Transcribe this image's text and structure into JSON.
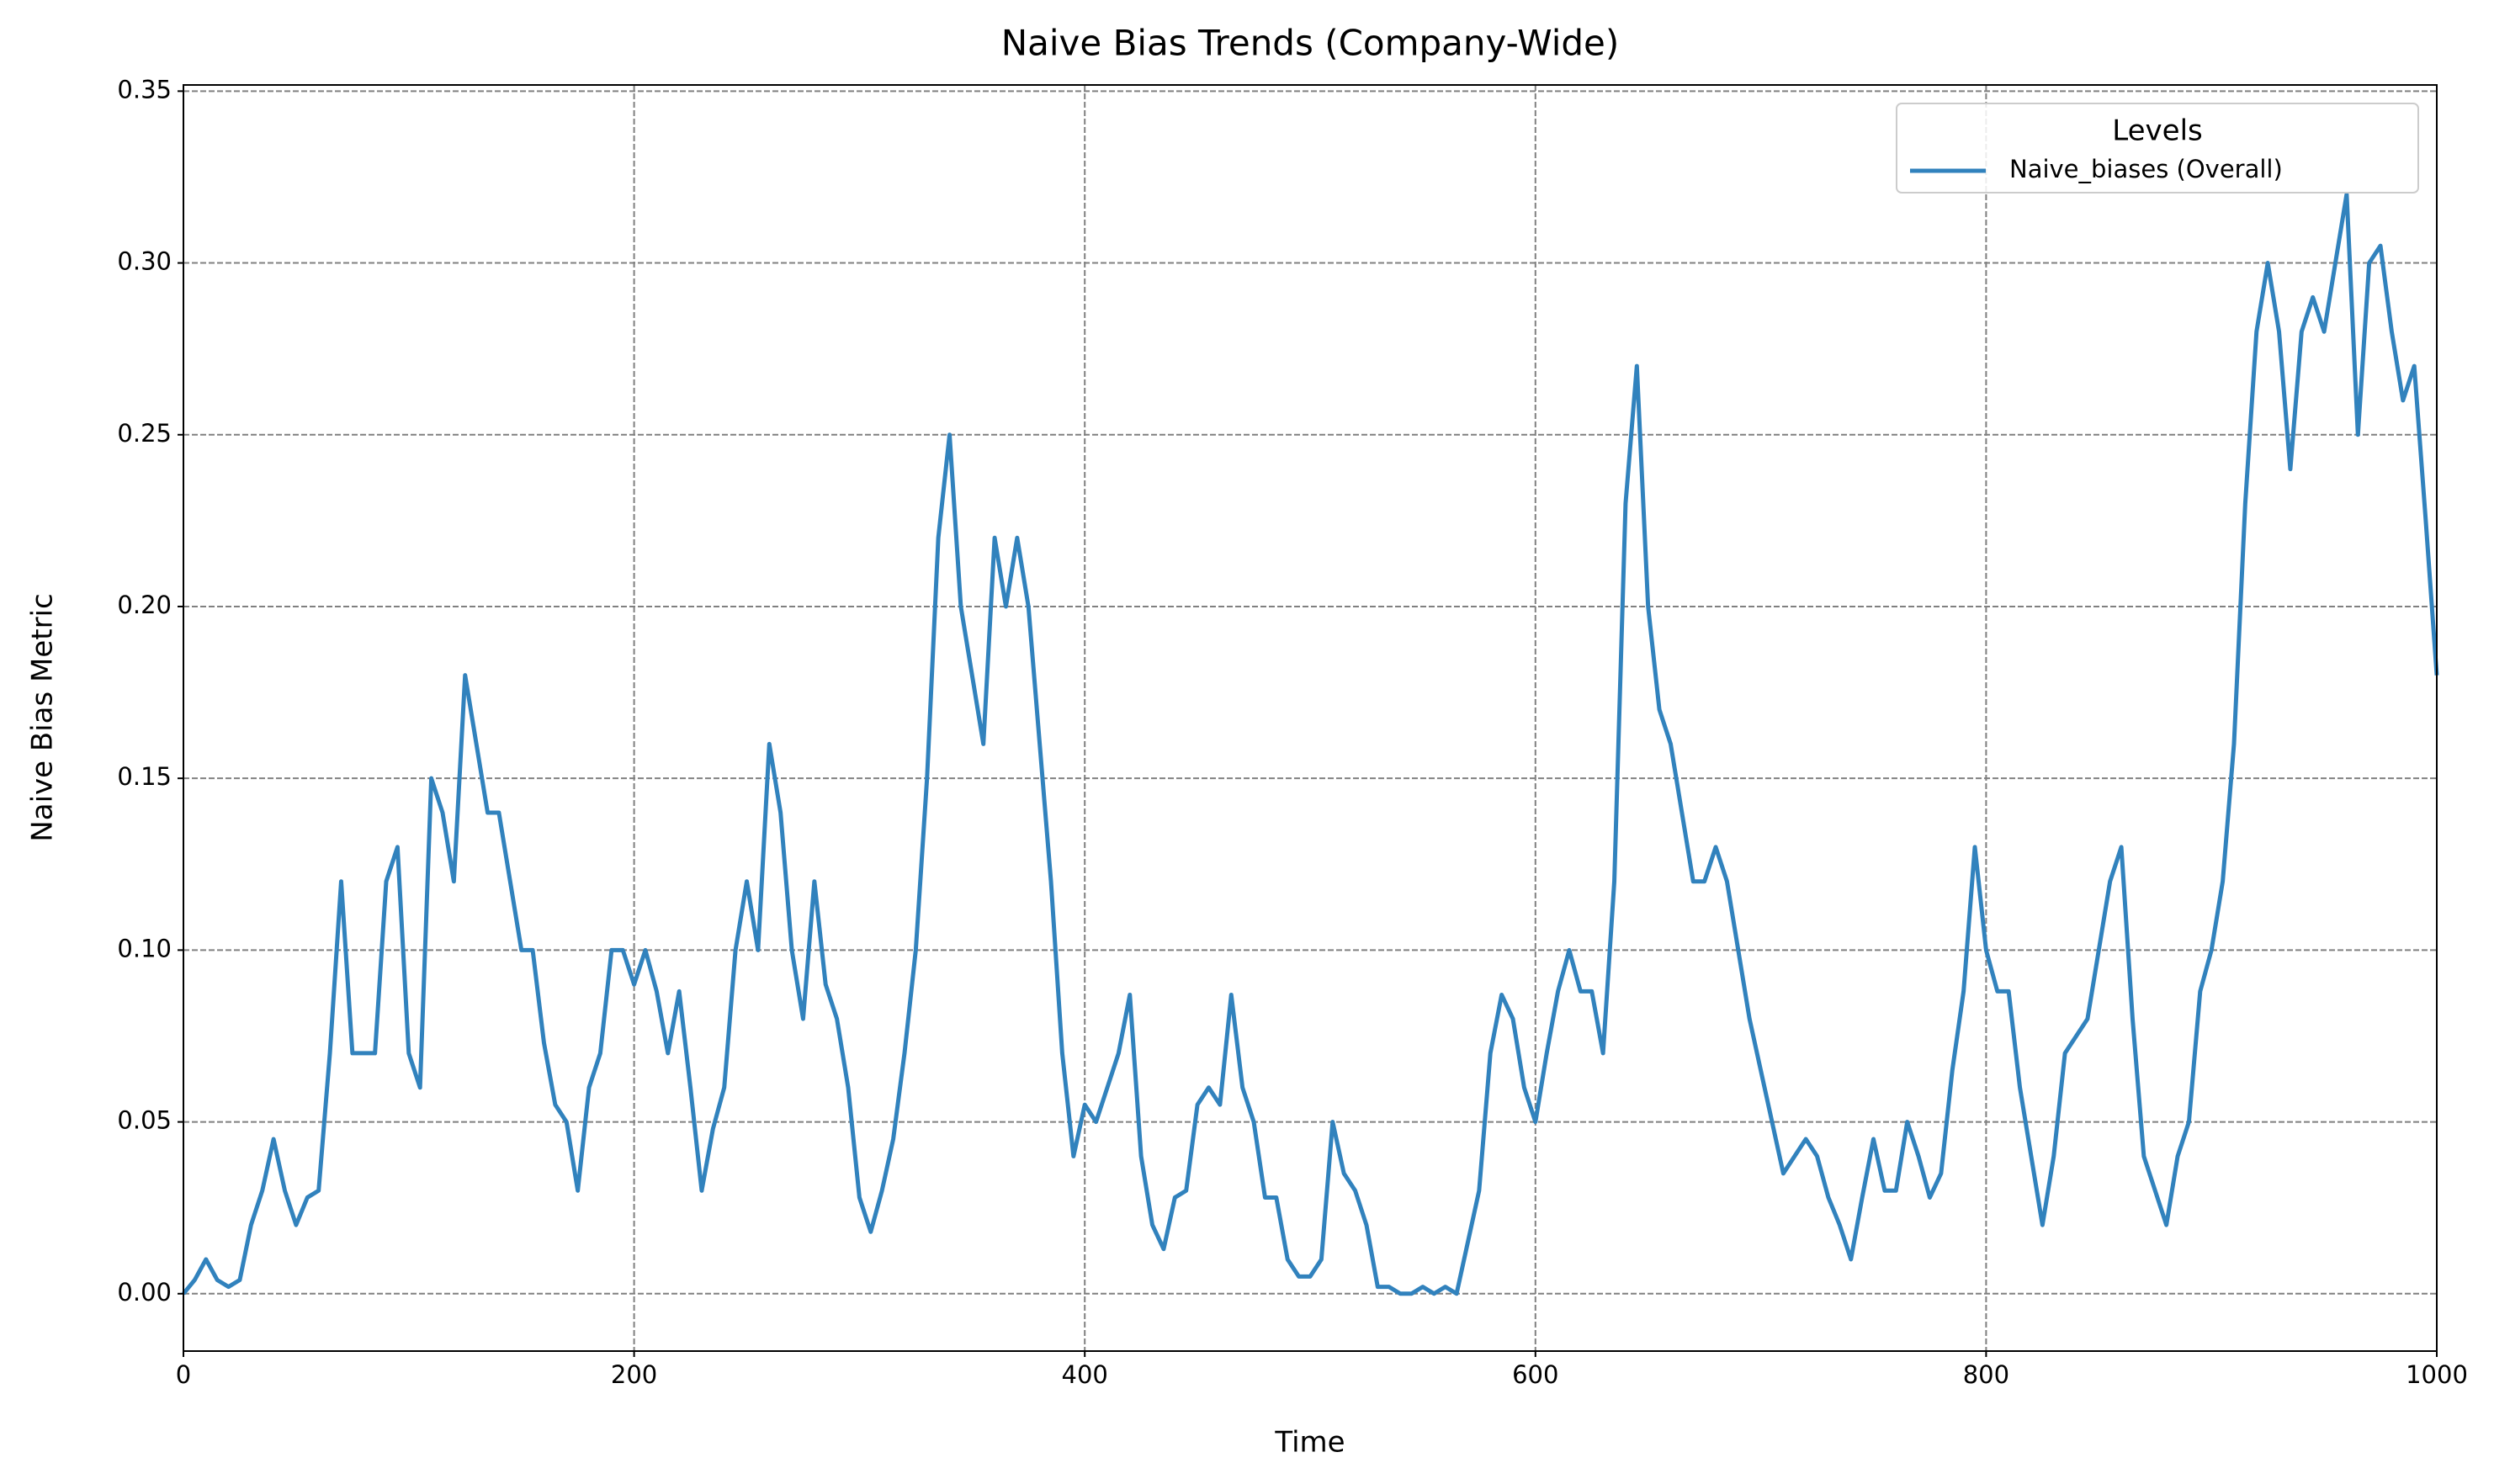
{
  "chart_data": {
    "type": "line",
    "title": "Naive Bias Trends (Company-Wide)",
    "x_label": "Time",
    "y_label": "Naive Bias Metric",
    "legend_title": "Levels",
    "legend_position": "upper right",
    "grid": true,
    "xlim": [
      0,
      1000
    ],
    "ylim": [
      -0.0167,
      0.3518
    ],
    "xticks": [
      0,
      200,
      400,
      600,
      800,
      1000
    ],
    "yticks": [
      {
        "value": 0,
        "label": "0.00"
      },
      {
        "value": 0.05,
        "label": "0.05"
      },
      {
        "value": 0.1,
        "label": "0.10"
      },
      {
        "value": 0.15,
        "label": "0.15"
      },
      {
        "value": 0.2,
        "label": "0.20"
      },
      {
        "value": 0.25,
        "label": "0.25"
      },
      {
        "value": 0.3,
        "label": "0.30"
      },
      {
        "value": 0.35,
        "label": "0.35"
      }
    ],
    "x": [
      0,
      5,
      10,
      15,
      20,
      25,
      30,
      35,
      40,
      45,
      50,
      55,
      60,
      65,
      70,
      75,
      80,
      85,
      90,
      95,
      100,
      105,
      110,
      115,
      120,
      125,
      130,
      135,
      140,
      145,
      150,
      155,
      160,
      165,
      170,
      175,
      180,
      185,
      190,
      195,
      200,
      205,
      210,
      215,
      220,
      225,
      230,
      235,
      240,
      245,
      250,
      255,
      260,
      265,
      270,
      275,
      280,
      285,
      290,
      295,
      300,
      305,
      310,
      315,
      320,
      325,
      330,
      335,
      340,
      345,
      350,
      355,
      360,
      365,
      370,
      375,
      380,
      385,
      390,
      395,
      400,
      405,
      410,
      415,
      420,
      425,
      430,
      435,
      440,
      445,
      450,
      455,
      460,
      465,
      470,
      475,
      480,
      485,
      490,
      495,
      500,
      505,
      510,
      515,
      520,
      525,
      530,
      535,
      540,
      545,
      550,
      555,
      560,
      565,
      570,
      575,
      580,
      585,
      590,
      595,
      600,
      605,
      610,
      615,
      620,
      625,
      630,
      635,
      640,
      645,
      650,
      655,
      660,
      665,
      670,
      675,
      680,
      685,
      690,
      695,
      700,
      705,
      710,
      715,
      720,
      725,
      730,
      735,
      740,
      745,
      750,
      755,
      760,
      765,
      770,
      775,
      780,
      785,
      790,
      795,
      800,
      805,
      810,
      815,
      820,
      825,
      830,
      835,
      840,
      845,
      850,
      855,
      860,
      865,
      870,
      875,
      880,
      885,
      890,
      895,
      900,
      905,
      910,
      915,
      920,
      925,
      930,
      935,
      940,
      945,
      950,
      955,
      960,
      965,
      970,
      975,
      980,
      985,
      990,
      995,
      1000
    ],
    "series": [
      {
        "name": "Naive_biases (Overall)",
        "color": "#3182bd",
        "values": [
          0,
          0.004,
          0.01,
          0.004,
          0.002,
          0.004,
          0.02,
          0.03,
          0.045,
          0.03,
          0.02,
          0.028,
          0.03,
          0.07,
          0.12,
          0.07,
          0.07,
          0.07,
          0.12,
          0.13,
          0.07,
          0.06,
          0.15,
          0.14,
          0.12,
          0.18,
          0.16,
          0.14,
          0.14,
          0.12,
          0.1,
          0.1,
          0.073,
          0.055,
          0.05,
          0.03,
          0.06,
          0.07,
          0.1,
          0.1,
          0.09,
          0.1,
          0.088,
          0.07,
          0.088,
          0.06,
          0.03,
          0.048,
          0.06,
          0.1,
          0.12,
          0.1,
          0.16,
          0.14,
          0.1,
          0.08,
          0.12,
          0.09,
          0.08,
          0.06,
          0.028,
          0.018,
          0.03,
          0.045,
          0.07,
          0.1,
          0.15,
          0.22,
          0.25,
          0.2,
          0.18,
          0.16,
          0.22,
          0.2,
          0.22,
          0.2,
          0.16,
          0.12,
          0.07,
          0.04,
          0.055,
          0.05,
          0.06,
          0.07,
          0.087,
          0.04,
          0.02,
          0.013,
          0.028,
          0.03,
          0.055,
          0.06,
          0.055,
          0.087,
          0.06,
          0.05,
          0.028,
          0.028,
          0.01,
          0.005,
          0.005,
          0.01,
          0.05,
          0.035,
          0.03,
          0.02,
          0.002,
          0.002,
          0,
          0,
          0.002,
          0,
          0.002,
          0,
          0.015,
          0.03,
          0.07,
          0.087,
          0.08,
          0.06,
          0.05,
          0.07,
          0.088,
          0.1,
          0.088,
          0.088,
          0.07,
          0.12,
          0.23,
          0.27,
          0.2,
          0.17,
          0.16,
          0.14,
          0.12,
          0.12,
          0.13,
          0.12,
          0.1,
          0.08,
          0.065,
          0.05,
          0.035,
          0.04,
          0.045,
          0.04,
          0.028,
          0.02,
          0.01,
          0.028,
          0.045,
          0.03,
          0.03,
          0.05,
          0.04,
          0.028,
          0.035,
          0.065,
          0.088,
          0.13,
          0.1,
          0.088,
          0.088,
          0.06,
          0.04,
          0.02,
          0.04,
          0.07,
          0.075,
          0.08,
          0.1,
          0.12,
          0.13,
          0.08,
          0.04,
          0.03,
          0.02,
          0.04,
          0.05,
          0.088,
          0.1,
          0.12,
          0.16,
          0.23,
          0.28,
          0.3,
          0.28,
          0.24,
          0.28,
          0.29,
          0.28,
          0.3,
          0.32,
          0.25,
          0.3,
          0.305,
          0.28,
          0.26,
          0.27,
          0.226,
          0.18
        ]
      }
    ]
  }
}
